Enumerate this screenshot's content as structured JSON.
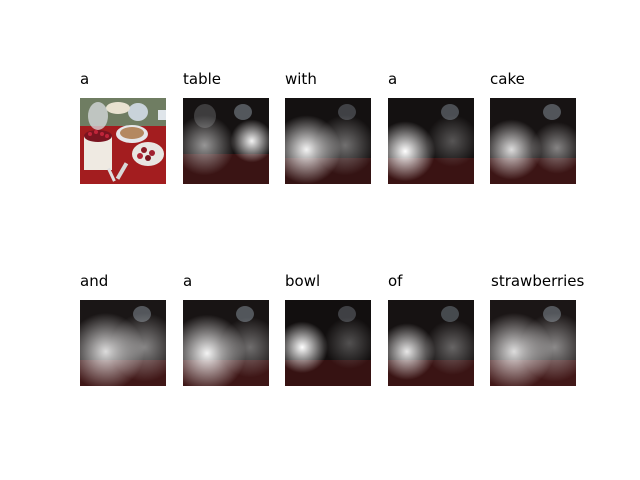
{
  "panels": [
    {
      "word": "a",
      "image": "original-photo",
      "focus": "none"
    },
    {
      "word": "table",
      "image": "attention-overlay",
      "focus": "center"
    },
    {
      "word": "with",
      "image": "attention-overlay",
      "focus": "left-center"
    },
    {
      "word": "a",
      "image": "attention-overlay",
      "focus": "left"
    },
    {
      "word": "cake",
      "image": "attention-overlay",
      "focus": "left-soft"
    },
    {
      "word": "and",
      "image": "attention-overlay",
      "focus": "wide"
    },
    {
      "word": "a",
      "image": "attention-overlay",
      "focus": "wide-left"
    },
    {
      "word": "bowl",
      "image": "attention-overlay",
      "focus": "left"
    },
    {
      "word": "of",
      "image": "attention-overlay",
      "focus": "left-soft"
    },
    {
      "word": "strawberries",
      "image": "attention-overlay",
      "focus": "wide"
    }
  ],
  "colors": {
    "tablecloth": "#9b1c1c",
    "cake": "#e8e4dc",
    "bowl": "#cfd6dc",
    "dark": "#141010"
  }
}
